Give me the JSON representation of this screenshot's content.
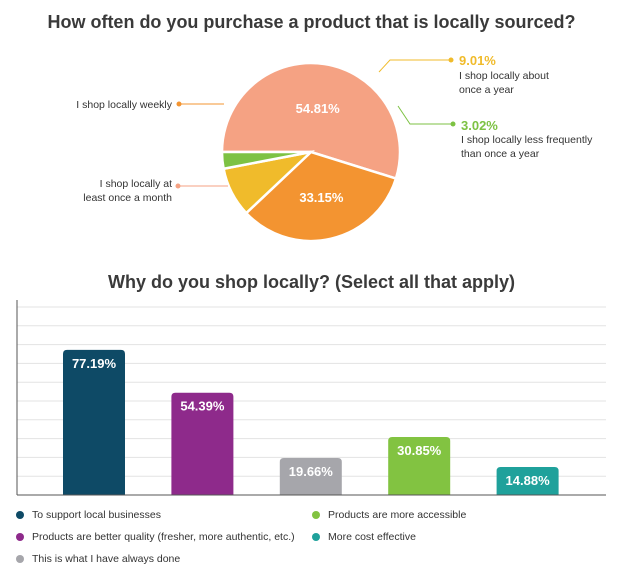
{
  "chart_data": [
    {
      "type": "pie",
      "title": "How often do you purchase a product that is locally sourced?",
      "slices": [
        {
          "label": "I shop locally at least once a month",
          "value": 54.81,
          "value_label": "54.81%",
          "color": "#f5a283"
        },
        {
          "label": "I shop locally weekly",
          "value": 33.15,
          "value_label": "33.15%",
          "color": "#f39431"
        },
        {
          "label": "I shop locally about once a year",
          "value": 9.01,
          "value_label": "9.01%",
          "color": "#f0bb2b"
        },
        {
          "label": "I shop locally less frequently than once a year",
          "value": 3.02,
          "value_label": "3.02%",
          "color": "#7dc243"
        }
      ],
      "callouts": {
        "weekly": "I shop locally weekly",
        "monthly_line1": "I shop locally at",
        "monthly_line2": "least once a month",
        "yearly_pct": "9.01%",
        "yearly_line1": "I shop locally about",
        "yearly_line2": "once a year",
        "less_pct": "3.02%",
        "less_line1": "I shop locally less frequently",
        "less_line2": "than once a year"
      }
    },
    {
      "type": "bar",
      "title": "Why do you shop locally? (Select all that apply)",
      "ylim": [
        0,
        100
      ],
      "grid": true,
      "legend_position": "bottom",
      "categories": [
        "To support local businesses",
        "Products are better quality (fresher, more authentic, etc.)",
        "This is what I have always done",
        "Products are more accessible",
        "More cost effective"
      ],
      "values": [
        77.19,
        54.39,
        19.66,
        30.85,
        14.88
      ],
      "value_labels": [
        "77.19%",
        "54.39%",
        "19.66%",
        "30.85%",
        "14.88%"
      ],
      "colors": [
        "#0e4a66",
        "#8e2a8b",
        "#a6a6ab",
        "#82c341",
        "#1fa19b"
      ]
    }
  ]
}
